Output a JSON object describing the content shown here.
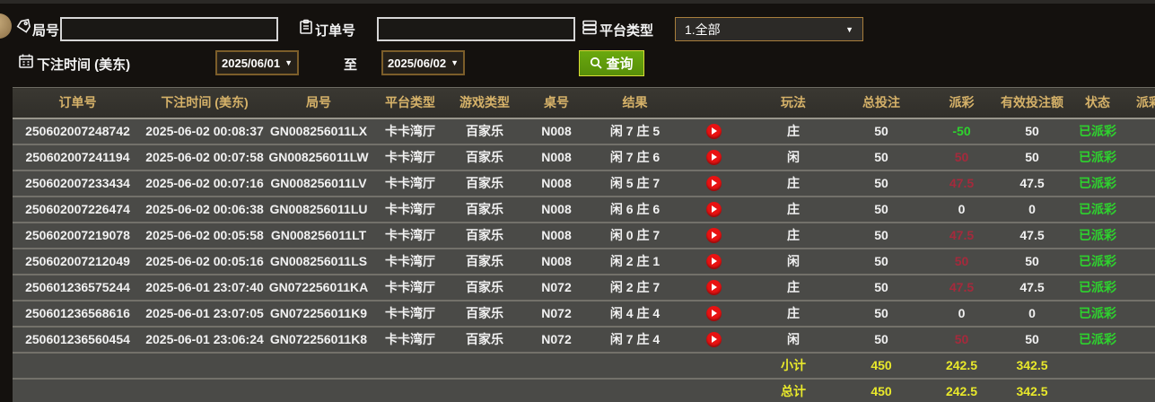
{
  "filters": {
    "round_label": "局号",
    "round_value": "",
    "order_label": "订单号",
    "order_value": "",
    "platform_label": "平台类型",
    "platform_value": "1.全部",
    "bet_time_label": "下注时间 (美东)",
    "date_from": "2025/06/01",
    "to_label": "至",
    "date_to": "2025/06/02",
    "search_label": "查询"
  },
  "table": {
    "headers": [
      "订单号",
      "下注时间 (美东)",
      "局号",
      "平台类型",
      "游戏类型",
      "桌号",
      "结果",
      "",
      "玩法",
      "总投注",
      "派彩",
      "有效投注额",
      "状态",
      "派彩时间"
    ],
    "rows": [
      {
        "order": "250602007248742",
        "time": "2025-06-02 00:08:37",
        "round": "GN008256011LX",
        "platform": "卡卡湾厅",
        "game": "百家乐",
        "table_no": "N008",
        "result": "闲 7 庄 5",
        "bet": "庄",
        "total": "50",
        "payout": "-50",
        "payout_color": "green",
        "valid": "50",
        "status": "已派彩",
        "extra": ""
      },
      {
        "order": "250602007241194",
        "time": "2025-06-02 00:07:58",
        "round": "GN008256011LW",
        "platform": "卡卡湾厅",
        "game": "百家乐",
        "table_no": "N008",
        "result": "闲 7 庄 6",
        "bet": "闲",
        "total": "50",
        "payout": "50",
        "payout_color": "red",
        "valid": "50",
        "status": "已派彩",
        "extra": ""
      },
      {
        "order": "250602007233434",
        "time": "2025-06-02 00:07:16",
        "round": "GN008256011LV",
        "platform": "卡卡湾厅",
        "game": "百家乐",
        "table_no": "N008",
        "result": "闲 5 庄 7",
        "bet": "庄",
        "total": "50",
        "payout": "47.5",
        "payout_color": "red",
        "valid": "47.5",
        "status": "已派彩",
        "extra": ""
      },
      {
        "order": "250602007226474",
        "time": "2025-06-02 00:06:38",
        "round": "GN008256011LU",
        "platform": "卡卡湾厅",
        "game": "百家乐",
        "table_no": "N008",
        "result": "闲 6 庄 6",
        "bet": "庄",
        "total": "50",
        "payout": "0",
        "payout_color": "white",
        "valid": "0",
        "status": "已派彩",
        "extra": ""
      },
      {
        "order": "250602007219078",
        "time": "2025-06-02 00:05:58",
        "round": "GN008256011LT",
        "platform": "卡卡湾厅",
        "game": "百家乐",
        "table_no": "N008",
        "result": "闲 0 庄 7",
        "bet": "庄",
        "total": "50",
        "payout": "47.5",
        "payout_color": "red",
        "valid": "47.5",
        "status": "已派彩",
        "extra": ""
      },
      {
        "order": "250602007212049",
        "time": "2025-06-02 00:05:16",
        "round": "GN008256011LS",
        "platform": "卡卡湾厅",
        "game": "百家乐",
        "table_no": "N008",
        "result": "闲 2 庄 1",
        "bet": "闲",
        "total": "50",
        "payout": "50",
        "payout_color": "red",
        "valid": "50",
        "status": "已派彩",
        "extra": ""
      },
      {
        "order": "250601236575244",
        "time": "2025-06-01 23:07:40",
        "round": "GN072256011KA",
        "platform": "卡卡湾厅",
        "game": "百家乐",
        "table_no": "N072",
        "result": "闲 2 庄 7",
        "bet": "庄",
        "total": "50",
        "payout": "47.5",
        "payout_color": "red",
        "valid": "47.5",
        "status": "已派彩",
        "extra": ""
      },
      {
        "order": "250601236568616",
        "time": "2025-06-01 23:07:05",
        "round": "GN072256011K9",
        "platform": "卡卡湾厅",
        "game": "百家乐",
        "table_no": "N072",
        "result": "闲 4 庄 4",
        "bet": "庄",
        "total": "50",
        "payout": "0",
        "payout_color": "white",
        "valid": "0",
        "status": "已派彩",
        "extra": ""
      },
      {
        "order": "250601236560454",
        "time": "2025-06-01 23:06:24",
        "round": "GN072256011K8",
        "platform": "卡卡湾厅",
        "game": "百家乐",
        "table_no": "N072",
        "result": "闲 7 庄 4",
        "bet": "闲",
        "total": "50",
        "payout": "50",
        "payout_color": "red",
        "valid": "50",
        "status": "已派彩",
        "extra": ""
      }
    ],
    "subtotal": {
      "label": "小计",
      "total": "450",
      "payout": "242.5",
      "valid": "342.5"
    },
    "grand_total": {
      "label": "总计",
      "total": "450",
      "payout": "242.5",
      "valid": "342.5"
    }
  },
  "colors": {
    "header_text": "#d6b269",
    "summary_text": "#e9e92b",
    "win_payout": "#a52a3c",
    "loss_payout": "#2ed32e",
    "status_paid": "#2ed32e",
    "search_button": "#5f9c0c",
    "play_button": "#e81212"
  }
}
